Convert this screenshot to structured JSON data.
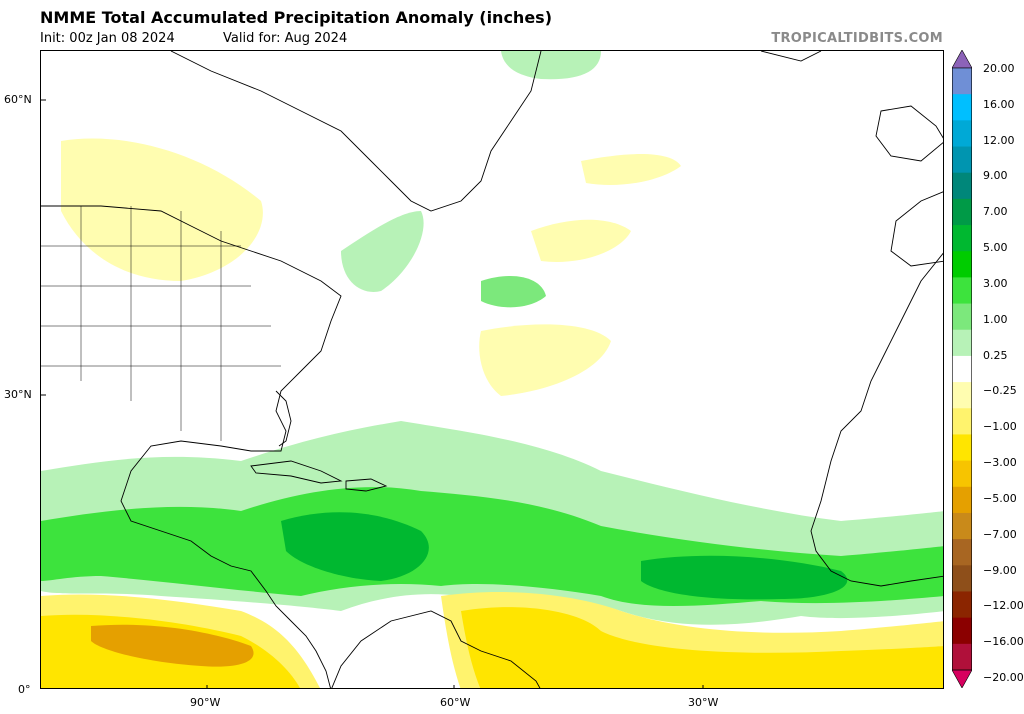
{
  "header": {
    "title": "NMME Total Accumulated Precipitation Anomaly (inches)",
    "init": "Init: 00z Jan 08 2024",
    "valid": "Valid for: Aug 2024",
    "credit": "TROPICALTIDBITS.COM"
  },
  "axes": {
    "lat_labels": [
      "60°N",
      "30°N",
      "0°"
    ],
    "lon_labels": [
      "90°W",
      "60°W",
      "30°W"
    ]
  },
  "colorbar": {
    "labels": [
      "20.00",
      "16.00",
      "12.00",
      "9.00",
      "7.00",
      "5.00",
      "3.00",
      "1.00",
      "0.25",
      "−0.25",
      "−1.00",
      "−3.00",
      "−5.00",
      "−7.00",
      "−9.00",
      "−12.00",
      "−16.00",
      "−20.00"
    ],
    "colors": [
      "#8c63b8",
      "#6f8fd6",
      "#00bfff",
      "#00a9d6",
      "#0095b0",
      "#00877a",
      "#009a47",
      "#00b830",
      "#00cc00",
      "#3de33d",
      "#7ce87c",
      "#b7f2b7",
      "#ffffff",
      "#fffdb0",
      "#fff36d",
      "#ffe500",
      "#f7c400",
      "#e5a000",
      "#c98a1a",
      "#a86622",
      "#8e4f1a",
      "#8b2500",
      "#8b0000",
      "#b0103a",
      "#d7005f"
    ]
  }
}
